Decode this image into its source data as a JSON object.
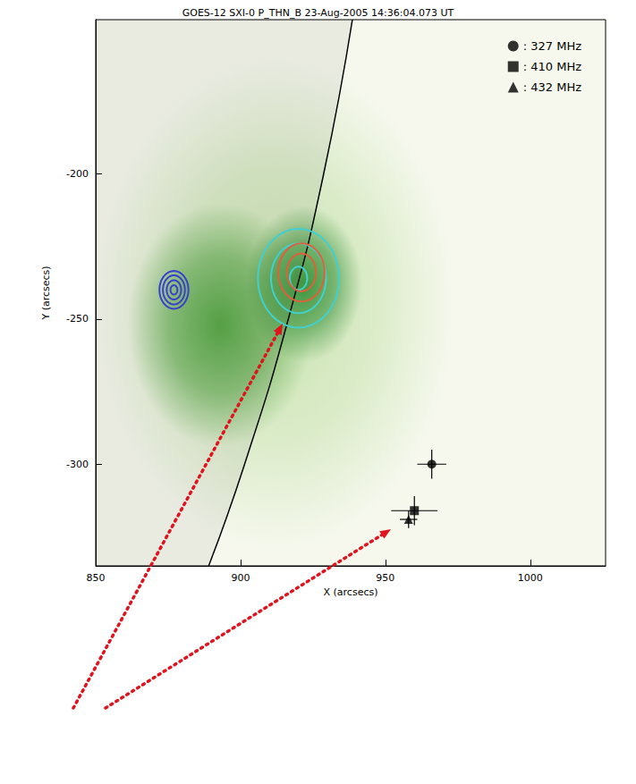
{
  "chart_data": {
    "type": "scatter",
    "title": "GOES-12 SXI-0 P_THN_B 23-Aug-2005 14:36:04.073 UT",
    "x_label": "X (arcsecs)",
    "y_label": "Y (arcsecs)",
    "xlim": [
      850,
      1026
    ],
    "xticks": [
      850,
      900,
      950,
      1000
    ],
    "ylim": [
      -335,
      -147
    ],
    "yticks": [
      -300,
      -250,
      -200
    ],
    "grid": false,
    "legend": "top-right",
    "series": [
      {
        "name": ": 327 MHz",
        "marker": "circle",
        "color": "#000000",
        "x": [
          966
        ],
        "y": [
          -300
        ],
        "x_error": [
          5
        ],
        "y_error": [
          5
        ]
      },
      {
        "name": ": 410 MHz",
        "marker": "square",
        "color": "#000000",
        "x": [
          960
        ],
        "y": [
          -316
        ],
        "x_error": [
          8
        ],
        "y_error": [
          5
        ]
      },
      {
        "name": ": 432 MHz",
        "marker": "triangle",
        "color": "#000000",
        "x": [
          958
        ],
        "y": [
          -319
        ],
        "x_error": [
          3
        ],
        "y_error": [
          3
        ]
      }
    ],
    "emission": [
      {
        "center": [
          912,
          -245
        ],
        "radii": [
          [
            62,
            85
          ]
        ],
        "color": "#c9e3b0"
      },
      {
        "center": [
          893,
          -252
        ],
        "radii": [
          [
            32,
            42
          ]
        ],
        "color": "#5aa84a"
      },
      {
        "center": [
          922,
          -238
        ],
        "radii": [
          [
            20,
            27
          ]
        ],
        "color": "#3f9640"
      }
    ],
    "limb": {
      "x": [
        938.6,
        928.7,
        916.5,
        901.4,
        889.0
      ],
      "y": [
        -147,
        -200,
        -250,
        -300,
        -335
      ]
    },
    "contours": [
      {
        "color": "#3a3fd0",
        "center": [
          877,
          -240
        ],
        "radii": [
          [
            5,
            6.5
          ],
          [
            3.8,
            5
          ],
          [
            2.5,
            3.3
          ],
          [
            1.2,
            1.6
          ]
        ]
      },
      {
        "color": "#40d0d0",
        "center": [
          920,
          -236
        ],
        "radii": [
          [
            14,
            17
          ],
          [
            9.5,
            12
          ],
          [
            3,
            4
          ]
        ]
      },
      {
        "color": "#e0603a",
        "center": [
          921,
          -234
        ],
        "radii": [
          [
            8,
            10
          ],
          [
            5,
            6.5
          ]
        ]
      }
    ]
  }
}
